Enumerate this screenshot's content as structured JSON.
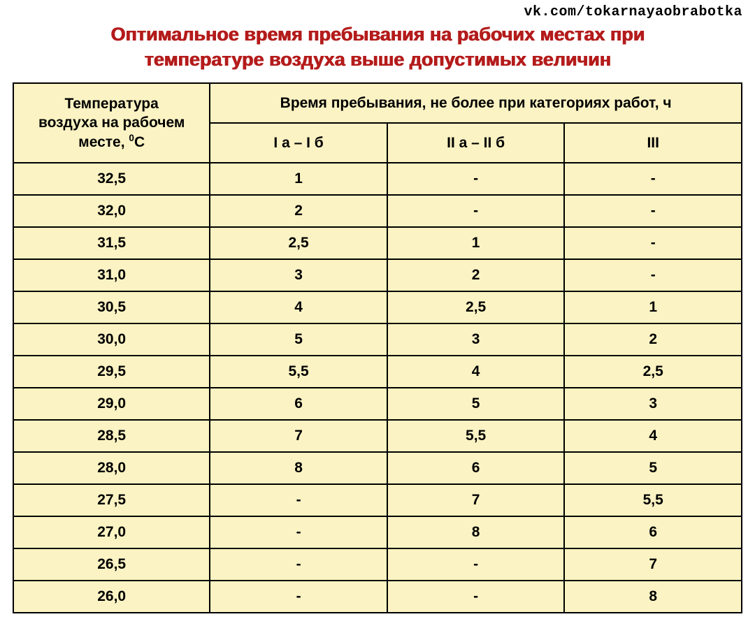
{
  "watermark": "vk.com/tokarnayaobrabotka",
  "title_line1": "Оптимальное время пребывания на рабочих местах при",
  "title_line2": "температуре воздуха выше допустимых величин",
  "table": {
    "background_color": "#fbf3c3",
    "border_color": "#000000",
    "title_color": "#b41b1b",
    "header_temp_pre": "Температура",
    "header_temp_mid": "воздуха на рабочем",
    "header_temp_post_a": "месте, ",
    "header_temp_post_sup": "0",
    "header_temp_post_b": "С",
    "header_time": "Время пребывания, не более при категориях работ, ч",
    "header_cat1": "I а – I б",
    "header_cat2": "II а – II б",
    "header_cat3": "III",
    "columns": [
      "temp",
      "cat1",
      "cat2",
      "cat3"
    ],
    "rows": [
      {
        "temp": "32,5",
        "cat1": "1",
        "cat2": "-",
        "cat3": "-"
      },
      {
        "temp": "32,0",
        "cat1": "2",
        "cat2": "-",
        "cat3": "-"
      },
      {
        "temp": "31,5",
        "cat1": "2,5",
        "cat2": "1",
        "cat3": "-"
      },
      {
        "temp": "31,0",
        "cat1": "3",
        "cat2": "2",
        "cat3": "-"
      },
      {
        "temp": "30,5",
        "cat1": "4",
        "cat2": "2,5",
        "cat3": "1"
      },
      {
        "temp": "30,0",
        "cat1": "5",
        "cat2": "3",
        "cat3": "2"
      },
      {
        "temp": "29,5",
        "cat1": "5,5",
        "cat2": "4",
        "cat3": "2,5"
      },
      {
        "temp": "29,0",
        "cat1": "6",
        "cat2": "5",
        "cat3": "3"
      },
      {
        "temp": "28,5",
        "cat1": "7",
        "cat2": "5,5",
        "cat3": "4"
      },
      {
        "temp": "28,0",
        "cat1": "8",
        "cat2": "6",
        "cat3": "5"
      },
      {
        "temp": "27,5",
        "cat1": "-",
        "cat2": "7",
        "cat3": "5,5"
      },
      {
        "temp": "27,0",
        "cat1": "-",
        "cat2": "8",
        "cat3": "6"
      },
      {
        "temp": "26,5",
        "cat1": "-",
        "cat2": "-",
        "cat3": "7"
      },
      {
        "temp": "26,0",
        "cat1": "-",
        "cat2": "-",
        "cat3": "8"
      }
    ]
  }
}
